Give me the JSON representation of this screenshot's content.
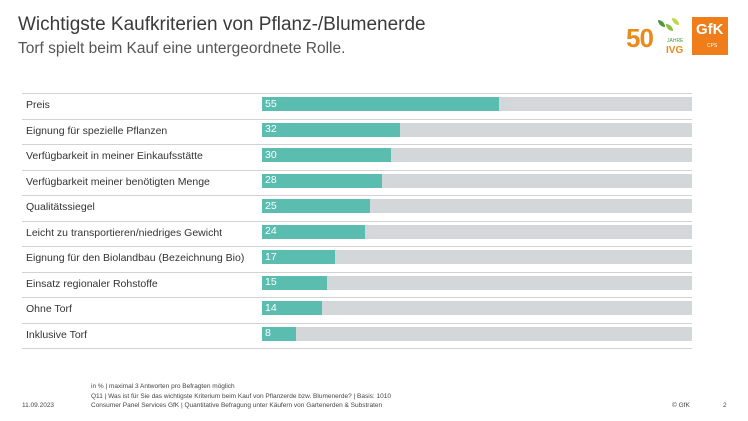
{
  "header": {
    "title": "Wichtigste Kaufkriterien von Pflanz-/Blumenerde",
    "subtitle": "Torf spielt beim Kauf eine untergeordnete Rolle."
  },
  "logos": {
    "ivg_number": "50",
    "ivg_jahre": "JAHRE",
    "ivg_name": "IVG",
    "gfk_name": "GfK",
    "gfk_sub": "CPS"
  },
  "chart_data": {
    "type": "bar",
    "orientation": "horizontal",
    "categories": [
      "Preis",
      "Eignung für spezielle Pflanzen",
      "Verfügbarkeit in meiner Einkaufsstätte",
      "Verfügbarkeit meiner benötigten Menge",
      "Qualitätssiegel",
      "Leicht zu transportieren/niedriges Gewicht",
      "Eignung für den Biolandbau (Bezeichnung Bio)",
      "Einsatz regionaler Rohstoffe",
      "Ohne Torf",
      "Inklusive Torf"
    ],
    "values": [
      55,
      32,
      30,
      28,
      25,
      24,
      17,
      15,
      14,
      8
    ],
    "xlim": [
      0,
      100
    ],
    "colors": {
      "bar": "#5bbcb0",
      "background": "#d4d7d9",
      "value_text": "#ffffff"
    },
    "data_labels": true
  },
  "footer": {
    "note1": "in % | maximal 3 Antworten pro Befragten möglich",
    "note2": "Q11 | Was ist für Sie das wichtigste Kriterium beim Kauf von Pflanzerde bzw. Blumenerde? | Basis: 1010",
    "note3": "Consumer Panel Services GfK | Quantitative Befragung unter Käufern von Gartenerden & Substraten",
    "date": "11.09.2023",
    "copyright": "© GfK",
    "page": "2"
  }
}
